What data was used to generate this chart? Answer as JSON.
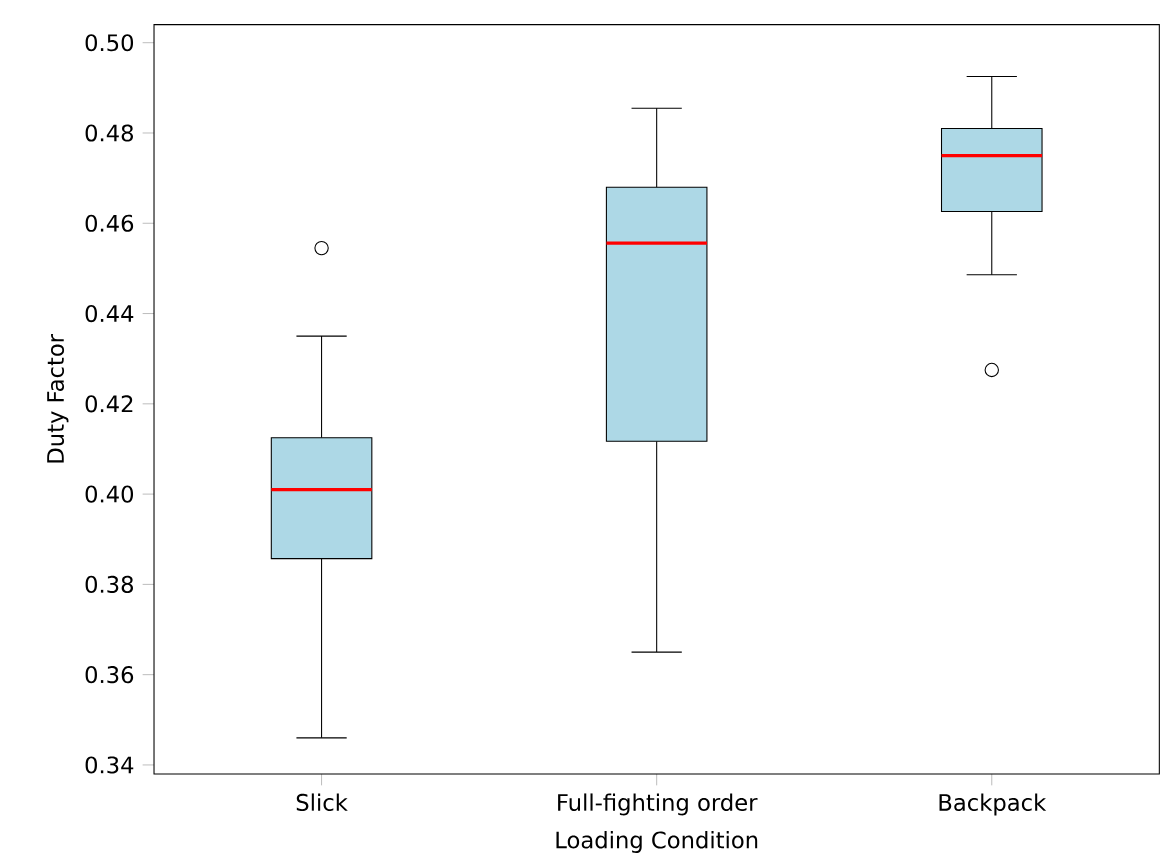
{
  "chart_data": {
    "type": "box",
    "xlabel": "Loading Condition",
    "ylabel": "Duty Factor",
    "categories": [
      "Slick",
      "Full-fighting order",
      "Backpack"
    ],
    "color": "#add8e6",
    "boxes": [
      {
        "low": 0.346,
        "q1": 0.3857,
        "median": 0.401,
        "q3": 0.4125,
        "high": 0.435,
        "outliers": [
          0.4545
        ]
      },
      {
        "low": 0.365,
        "q1": 0.4117,
        "median": 0.4556,
        "q3": 0.468,
        "high": 0.4855
      },
      {
        "low": 0.4486,
        "q1": 0.4626,
        "median": 0.475,
        "q3": 0.481,
        "high": 0.4925,
        "outliers": [
          0.4275
        ]
      }
    ],
    "ylim": [
      0.338,
      0.504
    ],
    "yticks": [
      {
        "value": 0.34,
        "label": "0.34"
      },
      {
        "value": 0.36,
        "label": "0.36"
      },
      {
        "value": 0.38,
        "label": "0.38"
      },
      {
        "value": 0.4,
        "label": "0.40"
      },
      {
        "value": 0.42,
        "label": "0.42"
      },
      {
        "value": 0.44,
        "label": "0.44"
      },
      {
        "value": 0.46,
        "label": "0.46"
      },
      {
        "value": 0.48,
        "label": "0.48"
      },
      {
        "value": 0.5,
        "label": "0.50"
      }
    ],
    "grid": false
  }
}
